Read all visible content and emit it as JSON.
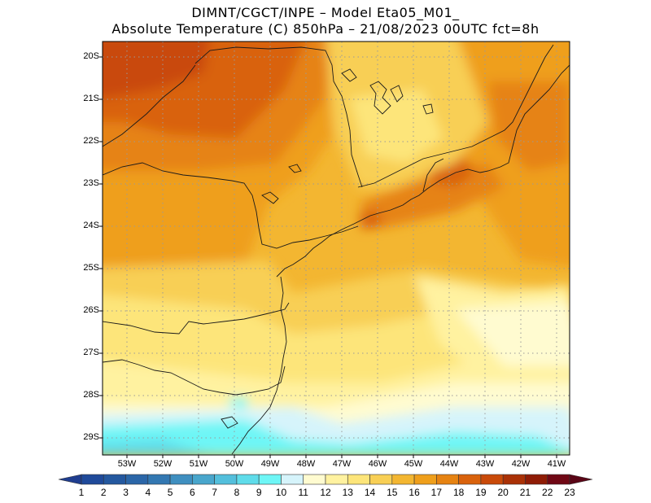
{
  "title": {
    "line1": "DIMNT/CGCT/INPE –  Model Eta05_M01_",
    "line2": "Absolute Temperature (C) 850hPa –  21/08/2023 00UTC fct=8h"
  },
  "map": {
    "lon_range": [
      -53.8,
      -40.5
    ],
    "lat_range": [
      -29.4,
      -19.8
    ],
    "lat_labels": [
      "20S",
      "21S",
      "22S",
      "23S",
      "24S",
      "25S",
      "26S",
      "27S",
      "28S",
      "29S"
    ],
    "lon_labels": [
      "53W",
      "52W",
      "51W",
      "50W",
      "49W",
      "48W",
      "47W",
      "46W",
      "45W",
      "44W",
      "43W",
      "42W",
      "41W"
    ]
  },
  "colorbar": {
    "labels": [
      "1",
      "2",
      "3",
      "4",
      "5",
      "6",
      "7",
      "8",
      "9",
      "10",
      "11",
      "12",
      "13",
      "14",
      "15",
      "16",
      "17",
      "18",
      "19",
      "20",
      "21",
      "22",
      "23"
    ],
    "colors": [
      "#1f3d8f",
      "#1f4a9a",
      "#24589f",
      "#2b66a8",
      "#3378b2",
      "#3f8fc0",
      "#49a6cc",
      "#53bfdc",
      "#5fdcea",
      "#6ef6f6",
      "#d6f4fb",
      "#fffbd0",
      "#fff2a0",
      "#fde57a",
      "#f8cf55",
      "#f3b631",
      "#ef9f1b",
      "#e68312",
      "#d9620c",
      "#c94a09",
      "#aa3106",
      "#8f1c06",
      "#700815",
      "#5a0516"
    ]
  }
}
